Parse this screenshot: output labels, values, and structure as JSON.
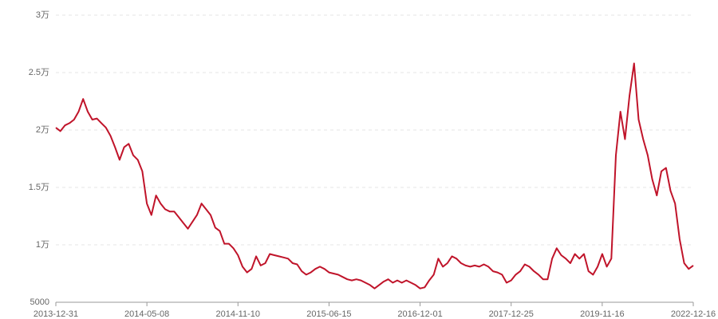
{
  "chart_data": {
    "type": "line",
    "categories": [
      "2013-12-31",
      null,
      null,
      null,
      null,
      null,
      null,
      null,
      null,
      null,
      null,
      null,
      null,
      null,
      null,
      null,
      null,
      null,
      null,
      null,
      "2014-05-08",
      null,
      null,
      null,
      null,
      null,
      null,
      null,
      null,
      null,
      null,
      null,
      null,
      null,
      null,
      null,
      null,
      null,
      null,
      null,
      "2014-11-10",
      null,
      null,
      null,
      null,
      null,
      null,
      null,
      null,
      null,
      null,
      null,
      null,
      null,
      null,
      null,
      null,
      null,
      null,
      null,
      "2015-06-15",
      null,
      null,
      null,
      null,
      null,
      null,
      null,
      null,
      null,
      null,
      null,
      null,
      null,
      null,
      null,
      null,
      null,
      null,
      null,
      "2016-12-01",
      null,
      null,
      null,
      null,
      null,
      null,
      null,
      null,
      null,
      null,
      null,
      null,
      null,
      null,
      null,
      null,
      null,
      null,
      null,
      "2017-12-25",
      null,
      null,
      null,
      null,
      null,
      null,
      null,
      null,
      null,
      null,
      null,
      null,
      null,
      null,
      null,
      null,
      null,
      null,
      null,
      "2019-11-16",
      null,
      null,
      null,
      null,
      null,
      null,
      null,
      null,
      null,
      null,
      null,
      null,
      null,
      null,
      null,
      null,
      null,
      null,
      null,
      "2022-12-16"
    ],
    "series": [
      {
        "color": "#c0142a",
        "values": [
          20200,
          19900,
          20400,
          20600,
          20900,
          21600,
          22700,
          21600,
          20900,
          21000,
          20600,
          20200,
          19500,
          18500,
          17400,
          18500,
          18800,
          17800,
          17400,
          16400,
          13600,
          12600,
          14300,
          13600,
          13100,
          12900,
          12900,
          12400,
          11900,
          11400,
          12000,
          12600,
          13600,
          13100,
          12600,
          11500,
          11200,
          10100,
          10100,
          9700,
          9100,
          8100,
          7600,
          7900,
          9000,
          8200,
          8400,
          9200,
          9100,
          9000,
          8900,
          8800,
          8400,
          8300,
          7700,
          7400,
          7600,
          7900,
          8100,
          7900,
          7600,
          7500,
          7400,
          7200,
          7000,
          6900,
          7000,
          6900,
          6700,
          6500,
          6200,
          6500,
          6800,
          7000,
          6700,
          6900,
          6700,
          6900,
          6700,
          6500,
          6200,
          6300,
          6900,
          7400,
          8800,
          8100,
          8400,
          9000,
          8800,
          8400,
          8200,
          8100,
          8200,
          8100,
          8300,
          8100,
          7700,
          7600,
          7400,
          6700,
          6900,
          7400,
          7700,
          8300,
          8100,
          7700,
          7400,
          7000,
          7000,
          8800,
          9700,
          9100,
          8800,
          8400,
          9200,
          8800,
          9200,
          7700,
          7400,
          8100,
          9200,
          8100,
          8800,
          17800,
          21600,
          19200,
          23000,
          25800,
          20900,
          19200,
          17800,
          15700,
          14300,
          16400,
          16700,
          14700,
          13600,
          10500,
          8400,
          7900,
          8200
        ]
      }
    ],
    "ylim": [
      5000,
      30000
    ],
    "yticks": [
      5000,
      {
        "value": 10000,
        "label": "1万"
      },
      {
        "value": 15000,
        "label": "1.5万"
      },
      {
        "value": 20000,
        "label": "2万"
      },
      {
        "value": 25000,
        "label": "2.5万"
      },
      {
        "value": 30000,
        "label": "3万"
      }
    ],
    "grid": true
  }
}
